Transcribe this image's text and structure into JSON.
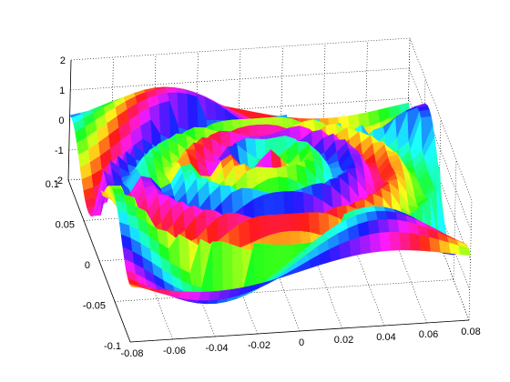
{
  "chart_data": {
    "type": "surface",
    "title": "",
    "xlabel": "",
    "ylabel": "",
    "zlabel": "",
    "grid": true,
    "colormap": "hsv",
    "xlim": [
      -0.08,
      0.08
    ],
    "ylim": [
      -0.1,
      0.1
    ],
    "zlim": [
      -2,
      2
    ],
    "x_ticks": [
      "-0.08",
      "-0.06",
      "-0.04",
      "-0.02",
      "0",
      "0.02",
      "0.04",
      "0.06",
      "0.08"
    ],
    "y_ticks": [
      "-0.1",
      "-0.05",
      "0",
      "0.05",
      "0.1"
    ],
    "z_ticks": [
      "-2",
      "-1",
      "0",
      "1",
      "2"
    ],
    "surface": {
      "description": "phase-colored oscillating surface: saddle outside a radius, domed with concentric ripples inside",
      "radius": 0.08,
      "saddle_amplitude": 1.3,
      "dome_height": 1.0,
      "ripple_count": 4
    }
  }
}
